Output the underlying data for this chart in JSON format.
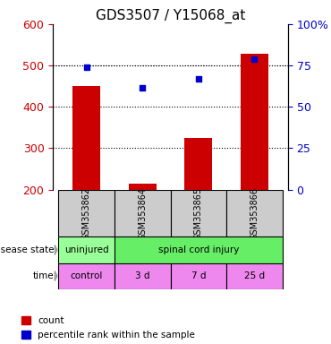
{
  "title": "GDS3507 / Y15068_at",
  "samples": [
    "GSM353862",
    "GSM353864",
    "GSM353865",
    "GSM353866"
  ],
  "bar_values": [
    450,
    215,
    325,
    528
  ],
  "scatter_values": [
    496,
    447,
    468,
    515
  ],
  "ylim_left": [
    200,
    600
  ],
  "ylim_right": [
    0,
    100
  ],
  "yticks_left": [
    200,
    300,
    400,
    500,
    600
  ],
  "yticks_right": [
    0,
    25,
    50,
    75,
    100
  ],
  "bar_color": "#cc0000",
  "scatter_color": "#0000cc",
  "bar_bottom": 200,
  "time_labels": [
    "control",
    "3 d",
    "7 d",
    "25 d"
  ],
  "time_color": "#ee88ee",
  "sample_bg_color": "#cccccc",
  "disease_uninj_color": "#99ff99",
  "disease_sci_color": "#66ee66",
  "legend_labels": [
    "count",
    "percentile rank within the sample"
  ]
}
